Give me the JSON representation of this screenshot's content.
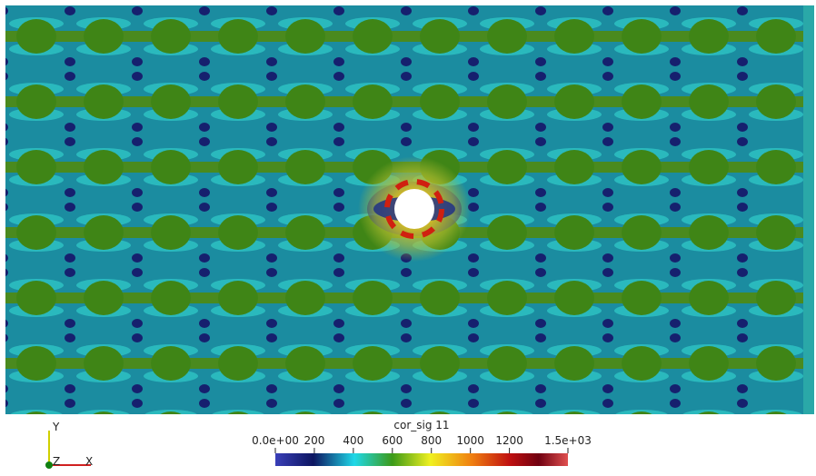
{
  "colorbar": {
    "title": "cor_sig 11",
    "range": [
      0,
      1500
    ],
    "ticks": [
      {
        "value": 0,
        "label": "0.0e+00"
      },
      200,
      400,
      600,
      800,
      1000,
      1200,
      {
        "value": 1500,
        "label": "1.5e+03"
      }
    ]
  },
  "axes": {
    "y": "Y",
    "z": "Z",
    "x": "X"
  }
}
